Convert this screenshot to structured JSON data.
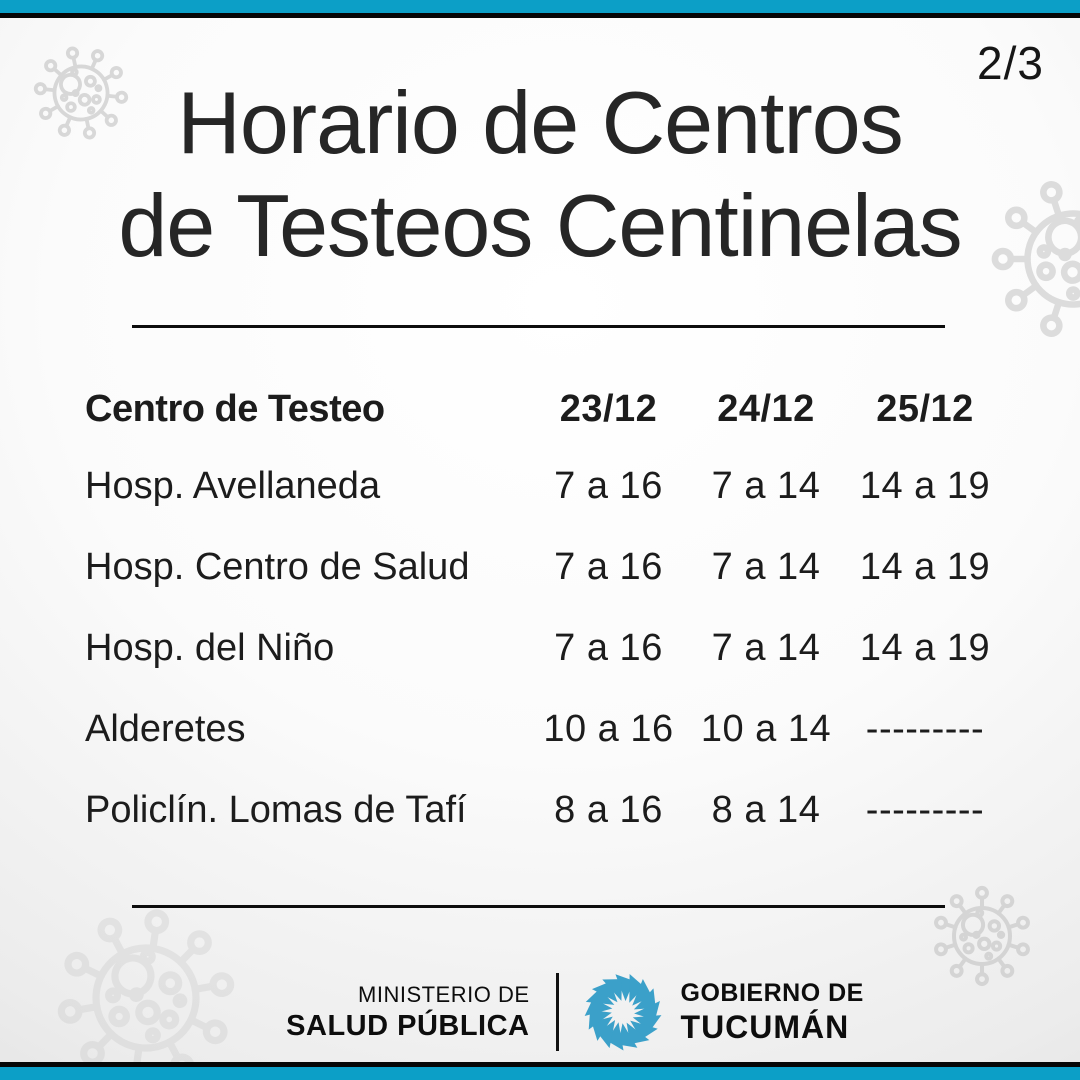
{
  "page_indicator": "2/3",
  "title": {
    "line1": "Horario de Centros",
    "line2": "de Testeos Centinelas"
  },
  "table": {
    "header": {
      "center_label": "Centro de Testeo",
      "dates": [
        "23/12",
        "24/12",
        "25/12"
      ]
    },
    "rows": [
      {
        "name": "Hosp. Avellaneda",
        "times": [
          "7 a 16",
          "7 a 14",
          "14 a 19"
        ]
      },
      {
        "name": "Hosp. Centro de Salud",
        "times": [
          "7 a 16",
          "7 a 14",
          "14 a 19"
        ]
      },
      {
        "name": "Hosp. del Niño",
        "times": [
          "7 a 16",
          "7 a 14",
          "14 a 19"
        ]
      },
      {
        "name": "Alderetes",
        "times": [
          "10 a 16",
          "10 a 14",
          "---------"
        ]
      },
      {
        "name": "Policlín. Lomas de Tafí",
        "times": [
          "8 a 16",
          "8 a 14",
          "---------"
        ]
      }
    ]
  },
  "footer": {
    "ministry_line1": "MINISTERIO DE",
    "ministry_line2": "SALUD PÚBLICA",
    "government_line1": "GOBIERNO DE",
    "government_line2": "TUCUMÁN"
  },
  "icons": {
    "decorations": "coronavirus-icon",
    "logo": "tucuman-pinwheel-logo"
  },
  "colors": {
    "accent_cyan": "#0c9fc7",
    "header_orange": "#e87a25",
    "logo_blue": "#3ba0c9",
    "text_dark": "#1c1c1c",
    "virus_gray": "#c3c3c3"
  }
}
